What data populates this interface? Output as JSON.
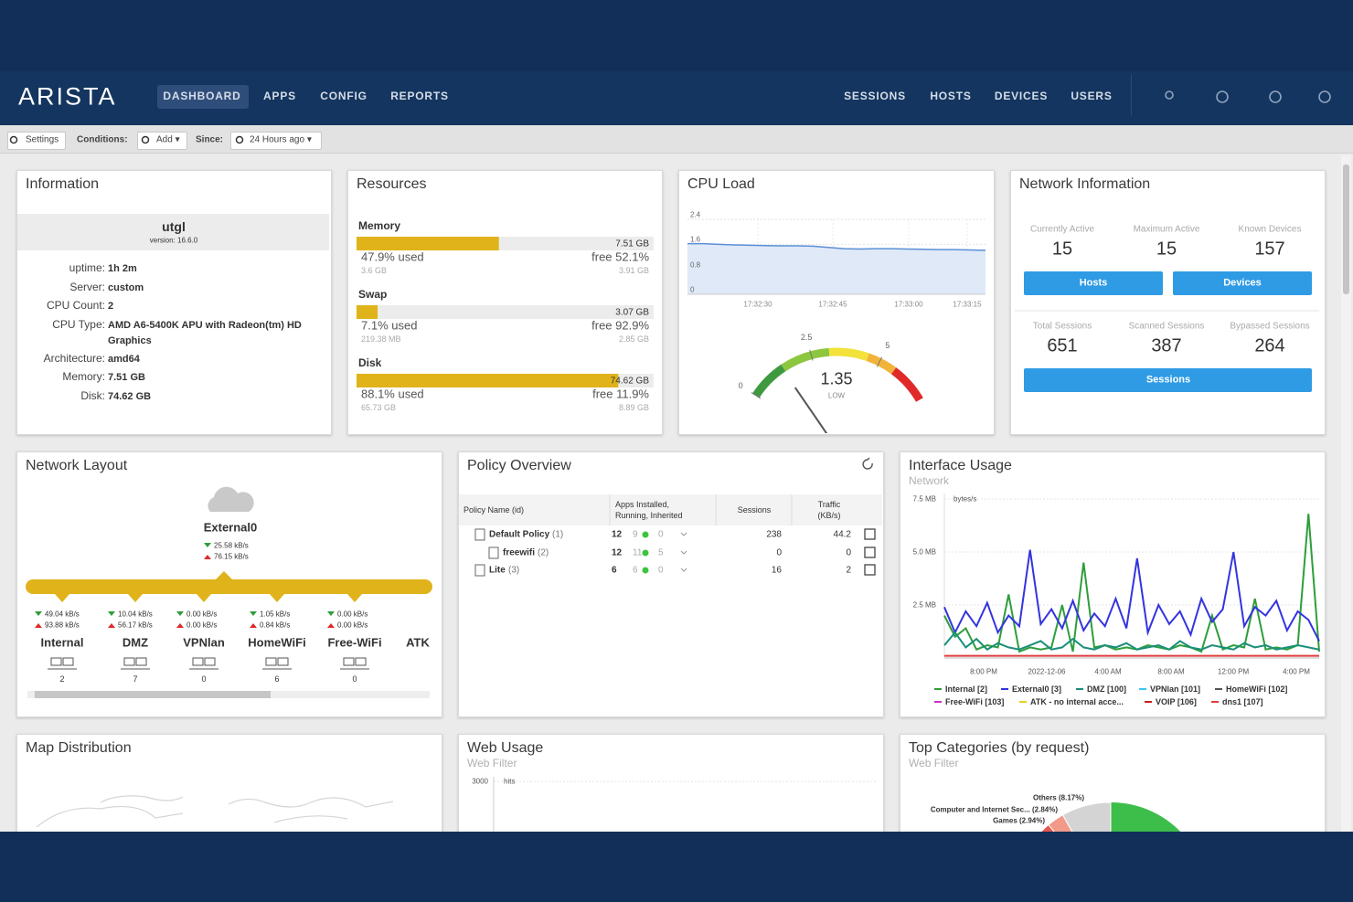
{
  "nav": {
    "brand": "ARISTA",
    "left": [
      "DASHBOARD",
      "APPS",
      "CONFIG",
      "REPORTS"
    ],
    "right": [
      "SESSIONS",
      "HOSTS",
      "DEVICES",
      "USERS"
    ]
  },
  "toolbar": {
    "settings": "Settings",
    "conditions": "Conditions:",
    "add": "Add ▾",
    "since": "Since:",
    "range": "24 Hours ago ▾"
  },
  "information": {
    "title": "Information",
    "host": "utgl",
    "version": "version: 16.6.0",
    "rows": [
      [
        "uptime:",
        "1h 2m"
      ],
      [
        "Server:",
        "custom"
      ],
      [
        "CPU Count:",
        "2"
      ],
      [
        "CPU Type:",
        "AMD A6-5400K APU with Radeon(tm) HD Graphics"
      ],
      [
        "Architecture:",
        "amd64"
      ],
      [
        "Memory:",
        "7.51 GB"
      ],
      [
        "Disk:",
        "74.62 GB"
      ]
    ]
  },
  "resources": {
    "title": "Resources",
    "items": [
      {
        "name": "Memory",
        "total": "7.51 GB",
        "used": 47.9,
        "used_label": "47.9% used",
        "free_label": "free 52.1%",
        "used_amount": "3.6 GB",
        "free_amount": "3.91 GB"
      },
      {
        "name": "Swap",
        "total": "3.07 GB",
        "used": 7.1,
        "used_label": "7.1% used",
        "free_label": "free 92.9%",
        "used_amount": "219.38 MB",
        "free_amount": "2.85 GB"
      },
      {
        "name": "Disk",
        "total": "74.62 GB",
        "used": 88.1,
        "used_label": "88.1% used",
        "free_label": "free 11.9%",
        "used_amount": "65.73 GB",
        "free_amount": "8.89 GB"
      }
    ]
  },
  "cpu": {
    "title": "CPU Load",
    "ylim": [
      0,
      2.4
    ],
    "yticks": [
      0,
      0.8,
      1.6,
      2.4
    ],
    "xticks": [
      "17:32:30",
      "17:32:45",
      "17:33:00",
      "17:33:15"
    ],
    "color": "#5b8fd6",
    "values": [
      1.62,
      1.62,
      1.6,
      1.58,
      1.57,
      1.56,
      1.55,
      1.55,
      1.54,
      1.5,
      1.46,
      1.45,
      1.46,
      1.46,
      1.45,
      1.44,
      1.43,
      1.43,
      1.42,
      1.41
    ],
    "gauge": {
      "value": 1.35,
      "label": "LOW",
      "lim": [
        0,
        7
      ],
      "ticks": [
        0,
        2.5,
        5
      ]
    }
  },
  "network_info": {
    "title": "Network Information",
    "stats": [
      {
        "label": "Currently Active",
        "value": 15
      },
      {
        "label": "Maximum Active",
        "value": 15
      },
      {
        "label": "Known Devices",
        "value": 157
      }
    ],
    "buttons": [
      "Hosts",
      "Devices"
    ],
    "sessions": [
      {
        "label": "Total Sessions",
        "value": 651
      },
      {
        "label": "Scanned Sessions",
        "value": 387
      },
      {
        "label": "Bypassed Sessions",
        "value": 264
      }
    ],
    "sessions_button": "Sessions"
  },
  "network_layout": {
    "title": "Network Layout",
    "external": {
      "name": "External0",
      "down": "25.58 kB/s",
      "up": "76.15 kB/s"
    },
    "interfaces": [
      {
        "name": "Internal",
        "down": "49.04 kB/s",
        "up": "93.88 kB/s",
        "hosts": 2
      },
      {
        "name": "DMZ",
        "down": "10.04 kB/s",
        "up": "56.17 kB/s",
        "hosts": 7
      },
      {
        "name": "VPNlan",
        "down": "0.00 kB/s",
        "up": "0.00 kB/s",
        "hosts": 0
      },
      {
        "name": "HomeWiFi",
        "down": "1.05 kB/s",
        "up": "0.84 kB/s",
        "hosts": 6
      },
      {
        "name": "Free-WiFi",
        "down": "0.00 kB/s",
        "up": "0.00 kB/s",
        "hosts": 0
      },
      {
        "name": "ATK"
      }
    ]
  },
  "policy": {
    "title": "Policy Overview",
    "columns": [
      "Policy Name (id)",
      "Apps Installed, Running, Inherited",
      "Sessions",
      "Traffic (KB/s)"
    ],
    "rows": [
      {
        "name": "Default Policy",
        "id": "(1)",
        "installed": 12,
        "running": 9,
        "inherited": 0,
        "sessions": 238,
        "traffic": 44.2
      },
      {
        "name": "freewifi",
        "id": "(2)",
        "installed": 12,
        "running": 11,
        "inherited": 5,
        "sessions": 0,
        "traffic": 0
      },
      {
        "name": "Lite",
        "id": "(3)",
        "installed": 6,
        "running": 6,
        "inherited": 0,
        "sessions": 16,
        "traffic": 2
      }
    ]
  },
  "interface_usage": {
    "title": "Interface Usage",
    "subtitle": "Network",
    "unit": "bytes/s",
    "ylim": [
      0,
      7.5
    ],
    "yticks": [
      {
        "value": 2.5,
        "label": "2.5 MB"
      },
      {
        "value": 5,
        "label": "5.0 MB"
      },
      {
        "value": 7.5,
        "label": "7.5 MB"
      }
    ],
    "xticks": [
      "8:00 PM",
      "2022-12-06",
      "4:00 AM",
      "8:00 AM",
      "12:00 PM",
      "4:00 PM"
    ],
    "series": [
      {
        "name": "Internal [2]",
        "color": "#2e9e3a",
        "values": [
          2.0,
          1.0,
          1.4,
          0.4,
          0.6,
          0.5,
          3.0,
          0.3,
          0.5,
          0.4,
          0.5,
          2.5,
          0.3,
          4.5,
          0.5,
          0.6,
          0.4,
          0.5,
          0.4,
          0.6,
          0.5,
          0.4,
          0.6,
          0.5,
          0.3,
          2.0,
          0.4,
          0.6,
          0.5,
          2.8,
          0.4,
          0.5,
          0.4,
          0.6,
          6.8,
          0.3
        ]
      },
      {
        "name": "External0 [3]",
        "color": "#3434e0",
        "values": [
          2.4,
          1.2,
          2.2,
          1.5,
          2.6,
          1.2,
          2.0,
          1.5,
          5.1,
          1.6,
          2.3,
          1.4,
          2.7,
          1.3,
          2.1,
          1.5,
          2.8,
          1.4,
          4.7,
          1.2,
          2.5,
          1.6,
          2.2,
          1.1,
          2.8,
          1.7,
          2.3,
          5.0,
          1.5,
          2.4,
          2.0,
          2.7,
          1.3,
          2.2,
          1.8,
          0.8
        ]
      },
      {
        "name": "DMZ [100]",
        "color": "#1a8f7a",
        "values": [
          0.6,
          1.2,
          0.5,
          0.9,
          0.4,
          0.7,
          0.5,
          0.4,
          0.6,
          0.8,
          0.4,
          0.5,
          0.9,
          0.5,
          0.4,
          0.6,
          0.5,
          0.7,
          0.4,
          0.5,
          0.6,
          0.4,
          0.8,
          0.5,
          0.4,
          0.6,
          0.5,
          0.4,
          0.7,
          0.5,
          0.6,
          0.4,
          0.5,
          0.6,
          0.5,
          0.4
        ]
      },
      {
        "name": "VPNlan [101]",
        "color": "#38c6ec"
      },
      {
        "name": "HomeWiFi [102]",
        "color": "#555555"
      },
      {
        "name": "Free-WiFi [103]",
        "color": "#c832c8"
      },
      {
        "name": "ATK - no internal acce...",
        "color": "#e6d020"
      },
      {
        "name": "VOIP [106]",
        "color": "#c81e1e"
      },
      {
        "name": "dns1 [107]",
        "color": "#e03c3c",
        "values": [
          0.1,
          0.1,
          0.1,
          0.1,
          0.1,
          0.1,
          0.1,
          0.1,
          0.1,
          0.1,
          0.1,
          0.1,
          0.1,
          0.1,
          0.1,
          0.1,
          0.1,
          0.1,
          0.1,
          0.1,
          0.1,
          0.1,
          0.1,
          0.1,
          0.1,
          0.1,
          0.1,
          0.1,
          0.1,
          0.1,
          0.1,
          0.1,
          0.1,
          0.1,
          0.1,
          0.1
        ]
      }
    ]
  },
  "map": {
    "title": "Map Distribution"
  },
  "web_usage": {
    "title": "Web Usage",
    "subtitle": "Web Filter",
    "unit": "hits",
    "yticks": [
      3000
    ]
  },
  "top_categories": {
    "title": "Top Categories (by request)",
    "subtitle": "Web Filter",
    "slices": [
      {
        "label": "Others (8.17%)",
        "value": 8.17,
        "color": "#d4d4d4"
      },
      {
        "label": "Computer and Internet Sec... (2.84%)",
        "value": 2.84,
        "color": "#f29a8a"
      },
      {
        "label": "Games (2.94%)",
        "value": 2.94,
        "color": "#e2574c"
      }
    ]
  }
}
